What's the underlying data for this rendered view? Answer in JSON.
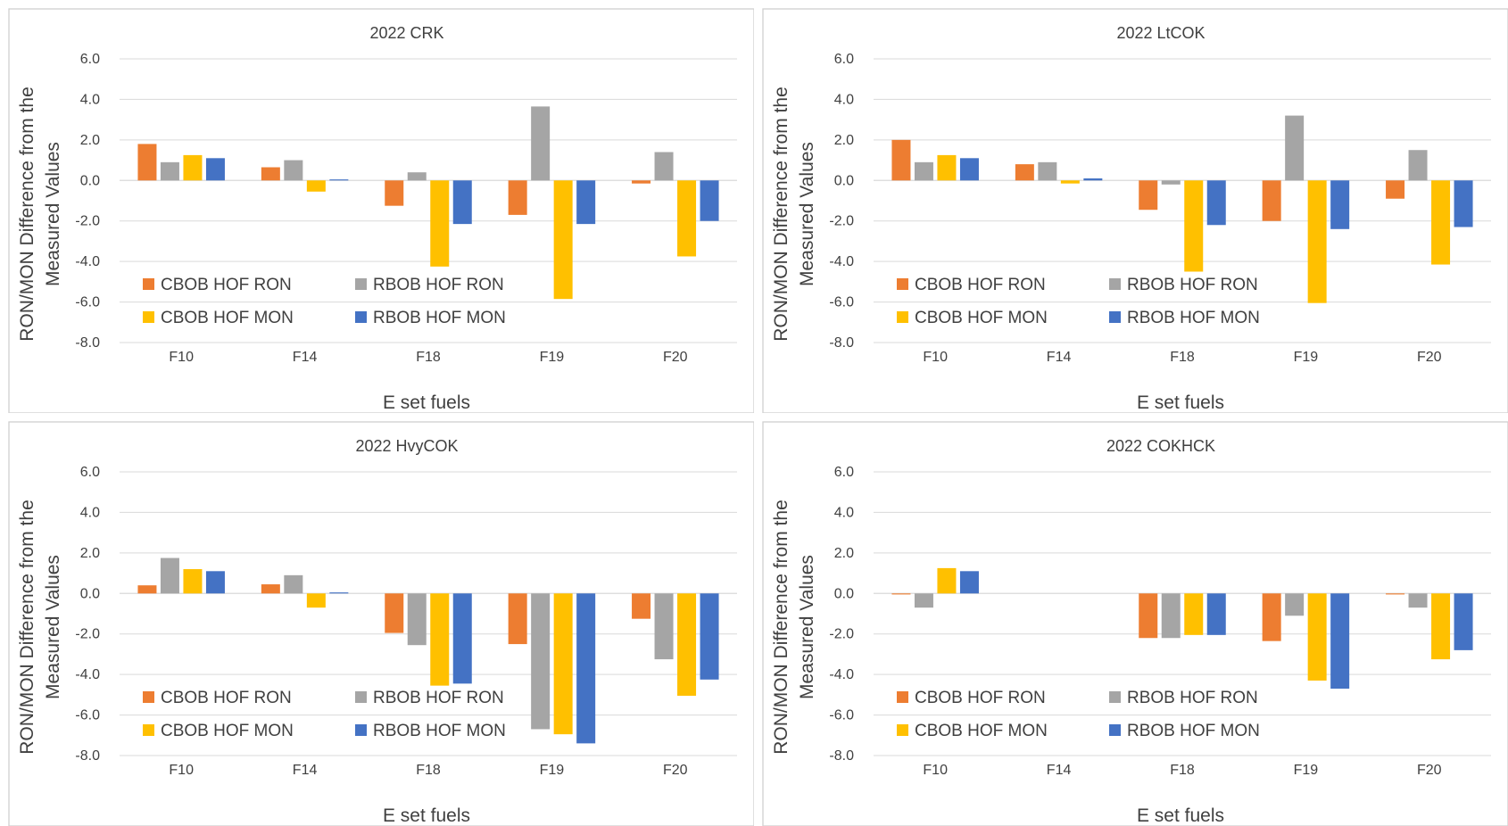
{
  "legend": {
    "placement": "inside lower-left, two columns",
    "entries": [
      "CBOB HOF RON",
      "RBOB HOF RON",
      "CBOB HOF MON",
      "RBOB HOF MON"
    ]
  },
  "colors": {
    "CBOB HOF RON": "#ed7d31",
    "RBOB HOF RON": "#a5a5a5",
    "CBOB HOF MON": "#ffc000",
    "RBOB HOF MON": "#4472c4"
  },
  "chart_data": [
    {
      "type": "bar",
      "title": "2022 CRK",
      "xlabel": "E set fuels",
      "ylabel_lines": [
        "RON/MON Difference from the",
        "Measured Values"
      ],
      "ylim": [
        -8,
        6
      ],
      "yticks": [
        "6.0",
        "4.0",
        "2.0",
        "0.0",
        "-2.0",
        "-4.0",
        "-6.0",
        "-8.0"
      ],
      "grid": true,
      "categories": [
        "F10",
        "F14",
        "F18",
        "F19",
        "F20"
      ],
      "series": [
        {
          "name": "CBOB HOF RON",
          "values": [
            1.8,
            0.65,
            -1.25,
            -1.7,
            -0.15
          ]
        },
        {
          "name": "RBOB HOF RON",
          "values": [
            0.9,
            1.0,
            0.4,
            3.65,
            1.4
          ]
        },
        {
          "name": "CBOB HOF MON",
          "values": [
            1.25,
            -0.55,
            -4.25,
            -5.85,
            -3.75
          ]
        },
        {
          "name": "RBOB HOF MON",
          "values": [
            1.1,
            0.05,
            -2.15,
            -2.15,
            -2.0
          ]
        }
      ]
    },
    {
      "type": "bar",
      "title": "2022 LtCOK",
      "xlabel": "E set fuels",
      "ylabel_lines": [
        "RON/MON Difference from the",
        "Measured Values"
      ],
      "ylim": [
        -8,
        6
      ],
      "yticks": [
        "6.0",
        "4.0",
        "2.0",
        "0.0",
        "-2.0",
        "-4.0",
        "-6.0",
        "-8.0"
      ],
      "grid": true,
      "categories": [
        "F10",
        "F14",
        "F18",
        "F19",
        "F20"
      ],
      "series": [
        {
          "name": "CBOB HOF RON",
          "values": [
            2.0,
            0.8,
            -1.45,
            -2.0,
            -0.9
          ]
        },
        {
          "name": "RBOB HOF RON",
          "values": [
            0.9,
            0.9,
            -0.2,
            3.2,
            1.5
          ]
        },
        {
          "name": "CBOB HOF MON",
          "values": [
            1.25,
            -0.15,
            -4.5,
            -6.05,
            -4.15
          ]
        },
        {
          "name": "RBOB HOF MON",
          "values": [
            1.1,
            0.1,
            -2.2,
            -2.4,
            -2.3
          ]
        }
      ]
    },
    {
      "type": "bar",
      "title": "2022 HvyCOK",
      "xlabel": "E set fuels",
      "ylabel_lines": [
        "RON/MON Difference from the",
        "Measured Values"
      ],
      "ylim": [
        -8,
        6
      ],
      "yticks": [
        "6.0",
        "4.0",
        "2.0",
        "0.0",
        "-2.0",
        "-4.0",
        "-6.0",
        "-8.0"
      ],
      "grid": true,
      "categories": [
        "F10",
        "F14",
        "F18",
        "F19",
        "F20"
      ],
      "series": [
        {
          "name": "CBOB HOF RON",
          "values": [
            0.4,
            0.45,
            -1.95,
            -2.5,
            -1.25
          ]
        },
        {
          "name": "RBOB HOF RON",
          "values": [
            1.75,
            0.9,
            -2.55,
            -6.7,
            -3.25
          ]
        },
        {
          "name": "CBOB HOF MON",
          "values": [
            1.2,
            -0.7,
            -4.55,
            -6.95,
            -5.05
          ]
        },
        {
          "name": "RBOB HOF MON",
          "values": [
            1.1,
            0.05,
            -4.45,
            -7.4,
            -4.25
          ]
        }
      ]
    },
    {
      "type": "bar",
      "title": "2022 COKHCK",
      "xlabel": "E set fuels",
      "ylabel_lines": [
        "RON/MON Difference from the",
        "Measured Values"
      ],
      "ylim": [
        -8,
        6
      ],
      "yticks": [
        "6.0",
        "4.0",
        "2.0",
        "0.0",
        "-2.0",
        "-4.0",
        "-6.0",
        "-8.0"
      ],
      "grid": true,
      "categories": [
        "F10",
        "F14",
        "F18",
        "F19",
        "F20"
      ],
      "series": [
        {
          "name": "CBOB HOF RON",
          "values": [
            -0.05,
            0,
            -2.2,
            -2.35,
            -0.05
          ]
        },
        {
          "name": "RBOB HOF RON",
          "values": [
            -0.7,
            0,
            -2.2,
            -1.1,
            -0.7
          ]
        },
        {
          "name": "CBOB HOF MON",
          "values": [
            1.25,
            0,
            -2.05,
            -4.3,
            -3.25
          ]
        },
        {
          "name": "RBOB HOF MON",
          "values": [
            1.1,
            0,
            -2.05,
            -4.7,
            -2.8
          ]
        }
      ]
    }
  ]
}
